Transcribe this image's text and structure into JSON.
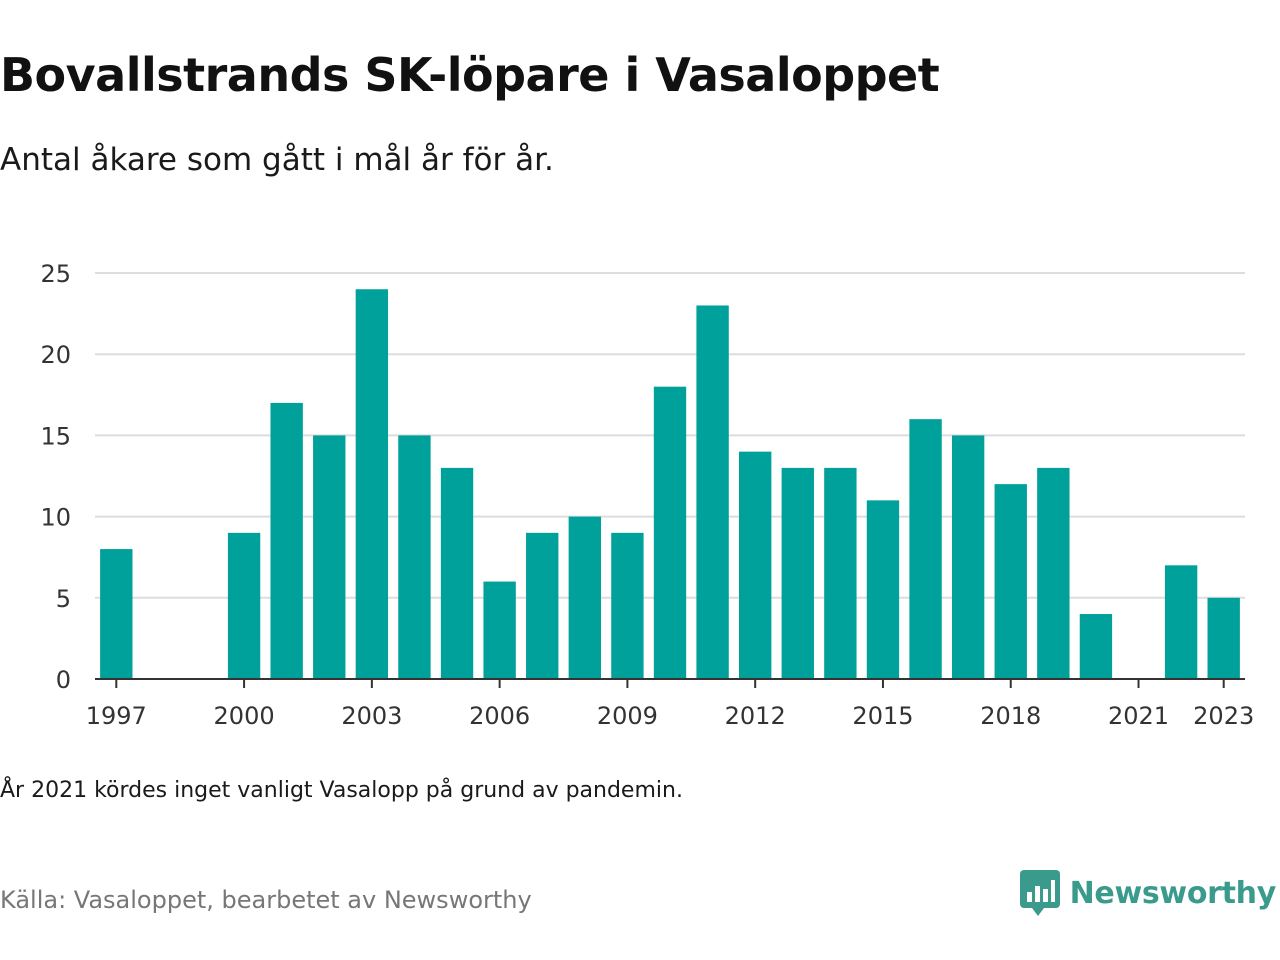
{
  "title": "Bovallstrands SK-löpare i Vasaloppet",
  "subtitle": "Antal åkare som gått i mål år för år.",
  "note": "År 2021 kördes inget vanligt Vasalopp på grund av pandemin.",
  "source": "Källa: Vasaloppet, bearbetet av Newsworthy",
  "brand": {
    "name": "Newsworthy",
    "icon": "newsworthy-logo-icon",
    "color": "#3a9a8c"
  },
  "colors": {
    "bar": "#00a19a",
    "grid": "#dddddd",
    "axis": "#333333"
  },
  "chart_data": {
    "type": "bar",
    "x": [
      1997,
      1998,
      1999,
      2000,
      2001,
      2002,
      2003,
      2004,
      2005,
      2006,
      2007,
      2008,
      2009,
      2010,
      2011,
      2012,
      2013,
      2014,
      2015,
      2016,
      2017,
      2018,
      2019,
      2020,
      2021,
      2022,
      2023
    ],
    "values": [
      8,
      0,
      0,
      9,
      17,
      15,
      24,
      15,
      13,
      6,
      9,
      10,
      9,
      18,
      23,
      14,
      13,
      13,
      11,
      16,
      15,
      12,
      13,
      4,
      0,
      7,
      5
    ],
    "xticks": [
      "1997",
      "2000",
      "2003",
      "2006",
      "2009",
      "2012",
      "2015",
      "2018",
      "2021",
      "2023"
    ],
    "yticks": [
      0,
      5,
      10,
      15,
      20,
      25
    ],
    "ylim": [
      0,
      25
    ],
    "grid": true
  }
}
